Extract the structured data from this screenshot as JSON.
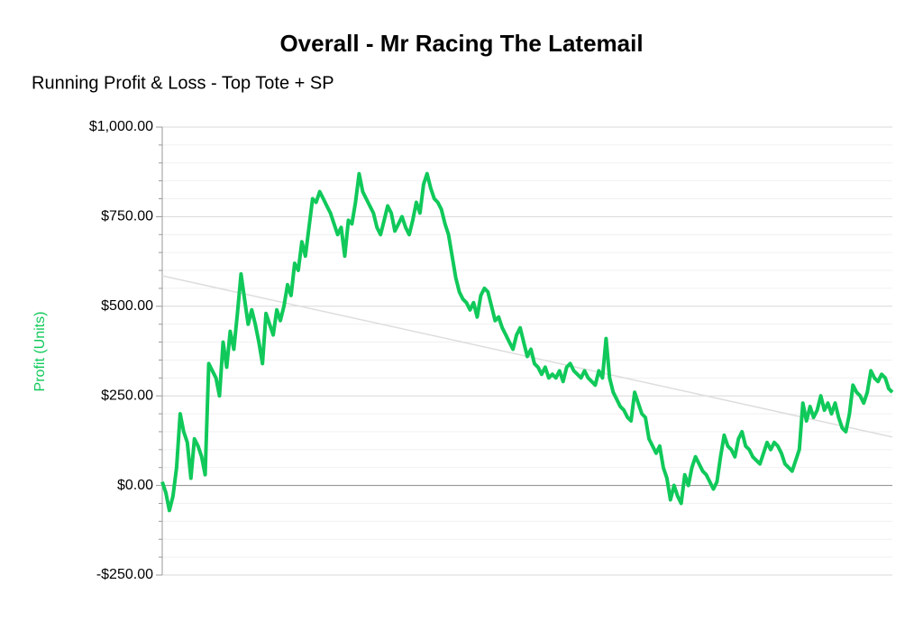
{
  "chart_data": {
    "type": "line",
    "title": "Overall - Mr Racing The Latemail",
    "subtitle": "Running Profit & Loss - Top Tote + SP",
    "y_label": "Profit (Units)",
    "ylim": [
      -250,
      1000
    ],
    "yticks": [
      {
        "value": -250,
        "label": "-$250.00"
      },
      {
        "value": 0,
        "label": "$0.00"
      },
      {
        "value": 250,
        "label": "$250.00"
      },
      {
        "value": 500,
        "label": "$500.00"
      },
      {
        "value": 750,
        "label": "$750.00"
      },
      {
        "value": 1000,
        "label": "$1,000.00"
      }
    ],
    "yticks_minor": [
      -200,
      -150,
      -100,
      -50,
      50,
      100,
      150,
      200,
      300,
      350,
      400,
      450,
      550,
      600,
      650,
      700,
      800,
      850,
      900,
      950
    ],
    "grid": true,
    "series": [
      {
        "color": "#10c95a",
        "values": [
          10,
          -20,
          -70,
          -30,
          50,
          200,
          150,
          120,
          20,
          130,
          110,
          80,
          30,
          340,
          320,
          300,
          250,
          400,
          330,
          430,
          380,
          480,
          590,
          520,
          450,
          490,
          450,
          400,
          340,
          480,
          450,
          420,
          490,
          460,
          500,
          560,
          530,
          620,
          600,
          680,
          640,
          720,
          800,
          790,
          820,
          800,
          780,
          760,
          730,
          700,
          720,
          640,
          740,
          730,
          790,
          870,
          820,
          800,
          780,
          760,
          720,
          700,
          740,
          780,
          760,
          710,
          730,
          750,
          720,
          700,
          740,
          790,
          760,
          840,
          870,
          830,
          800,
          790,
          770,
          730,
          700,
          640,
          580,
          540,
          520,
          510,
          490,
          510,
          470,
          530,
          550,
          540,
          500,
          460,
          470,
          440,
          420,
          400,
          380,
          420,
          440,
          400,
          360,
          380,
          340,
          330,
          310,
          330,
          300,
          310,
          300,
          320,
          290,
          330,
          340,
          320,
          310,
          300,
          320,
          300,
          290,
          280,
          320,
          300,
          410,
          300,
          260,
          240,
          220,
          210,
          190,
          180,
          260,
          230,
          200,
          190,
          130,
          110,
          90,
          110,
          50,
          20,
          -40,
          0,
          -30,
          -50,
          30,
          0,
          50,
          80,
          60,
          40,
          30,
          10,
          -10,
          10,
          80,
          140,
          110,
          100,
          80,
          130,
          150,
          110,
          100,
          80,
          70,
          60,
          90,
          120,
          100,
          120,
          110,
          90,
          60,
          50,
          40,
          70,
          100,
          230,
          180,
          220,
          190,
          210,
          250,
          210,
          230,
          200,
          230,
          190,
          160,
          150,
          200,
          280,
          260,
          250,
          230,
          260,
          320,
          300,
          290,
          310,
          300,
          270,
          260
        ]
      },
      {
        "color": "#dddddd",
        "values": [
          585,
          135
        ]
      }
    ]
  }
}
